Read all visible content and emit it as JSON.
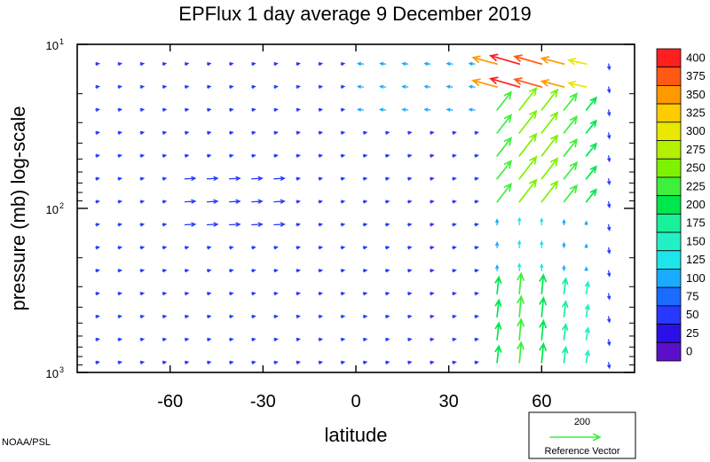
{
  "chart_data": {
    "type": "vector-field",
    "title": "EPFlux  1 day average  9 December 2019",
    "xlabel": "latitude",
    "ylabel": "pressure (mb)  log-scale",
    "xlim": [
      -90,
      90
    ],
    "ylim": [
      1000,
      10
    ],
    "y_scale": "log",
    "x_ticks": [
      {
        "value": -60,
        "label": "-60"
      },
      {
        "value": -30,
        "label": "-30"
      },
      {
        "value": 0,
        "label": "0"
      },
      {
        "value": 30,
        "label": "30"
      },
      {
        "value": 60,
        "label": "60"
      }
    ],
    "y_ticks": [
      {
        "value": 10,
        "base": "10",
        "exp": "1"
      },
      {
        "value": 100,
        "base": "10",
        "exp": "2"
      },
      {
        "value": 1000,
        "base": "10",
        "exp": "3"
      }
    ],
    "colorbar": {
      "levels": [
        "400",
        "375",
        "350",
        "325",
        "300",
        "275",
        "250",
        "225",
        "200",
        "175",
        "150",
        "125",
        "100",
        "75",
        "50",
        "25",
        "0"
      ],
      "colors": [
        "#ff1f1f",
        "#ff5a14",
        "#ff9900",
        "#ffcc00",
        "#e8e800",
        "#b4f000",
        "#7ef200",
        "#3ef03c",
        "#00e64d",
        "#18f09a",
        "#24f0c8",
        "#1ee4ec",
        "#1aaaff",
        "#1a6bff",
        "#2838ff",
        "#2a10e6",
        "#5a10c8"
      ]
    },
    "reference_vector": {
      "value": "200",
      "label": "Reference Vector",
      "color": "#3ef03c"
    },
    "credit": "NOAA/PSL"
  }
}
